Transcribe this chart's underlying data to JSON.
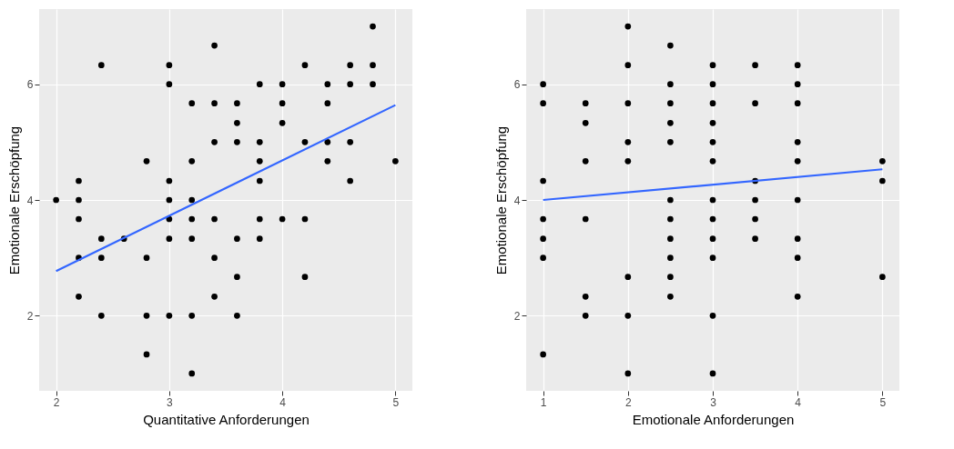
{
  "chart_data": [
    {
      "type": "scatter",
      "xlabel": "Quantitative Anforderungen",
      "ylabel": "Emotionale Erschöpfung",
      "xlim": [
        1.85,
        5.15
      ],
      "ylim": [
        0.7,
        7.3
      ],
      "xticks": [
        2,
        3,
        4,
        5
      ],
      "yticks": [
        2,
        4,
        6
      ],
      "grid": true,
      "series": [
        {
          "marker": "circle",
          "color": "#000000",
          "x": [
            2,
            2.2,
            2.2,
            2.2,
            2.2,
            2.2,
            2.4,
            2.4,
            2.4,
            2.4,
            2.6,
            2.8,
            2.8,
            2.8,
            2.8,
            3,
            3,
            3,
            3,
            3,
            3,
            3,
            3.2,
            3.2,
            3.2,
            3.2,
            3.2,
            3.2,
            3.2,
            3.4,
            3.4,
            3.4,
            3.4,
            3.4,
            3.4,
            3.6,
            3.6,
            3.6,
            3.6,
            3.6,
            3.6,
            3.8,
            3.8,
            3.8,
            3.8,
            3.8,
            3.8,
            4,
            4,
            4,
            4,
            4.2,
            4.2,
            4.2,
            4.2,
            4.4,
            4.4,
            4.4,
            4.4,
            4.6,
            4.6,
            4.6,
            4.6,
            4.8,
            4.8,
            4.8,
            5
          ],
          "values": [
            4,
            4.33,
            4,
            3.67,
            3,
            2.33,
            6.33,
            3.33,
            3,
            2,
            3.33,
            4.67,
            3,
            2,
            1.33,
            6.33,
            6,
            4.33,
            4,
            3.67,
            3.33,
            2,
            5.67,
            4.67,
            4,
            3.67,
            3.33,
            2,
            1,
            6.67,
            5.67,
            5,
            3.67,
            3,
            2.33,
            5.67,
            5.33,
            5,
            3.33,
            2.67,
            2,
            6,
            5,
            4.67,
            4.33,
            3.67,
            3.33,
            6,
            5.67,
            5.33,
            3.67,
            6.33,
            5,
            3.67,
            2.67,
            6,
            5.67,
            5,
            4.67,
            6.33,
            6,
            5,
            4.33,
            7,
            6.33,
            6,
            4.67
          ]
        },
        {
          "type": "line",
          "color": "#3366ff",
          "x": [
            2,
            5
          ],
          "values": [
            2.77,
            5.64
          ]
        }
      ]
    },
    {
      "type": "scatter",
      "xlabel": "Emotionale Anforderungen",
      "ylabel": "Emotionale Erschöpfung",
      "xlim": [
        0.8,
        5.2
      ],
      "ylim": [
        0.7,
        7.3
      ],
      "xticks": [
        1,
        2,
        3,
        4,
        5
      ],
      "yticks": [
        2,
        4,
        6
      ],
      "grid": true,
      "series": [
        {
          "marker": "circle",
          "color": "#000000",
          "x": [
            1,
            1,
            1,
            1,
            1,
            1,
            1,
            1.5,
            1.5,
            1.5,
            1.5,
            1.5,
            1.5,
            2,
            2,
            2,
            2,
            2,
            2,
            2,
            2,
            2.5,
            2.5,
            2.5,
            2.5,
            2.5,
            2.5,
            2.5,
            2.5,
            2.5,
            2.5,
            2.5,
            3,
            3,
            3,
            3,
            3,
            3,
            3,
            3,
            3,
            3,
            3,
            3,
            3.5,
            3.5,
            3.5,
            3.5,
            3.5,
            3.5,
            4,
            4,
            4,
            4,
            4,
            4,
            4,
            4,
            4,
            5,
            5,
            5
          ],
          "values": [
            6,
            5.67,
            4.33,
            3.67,
            3.33,
            3,
            1.33,
            5.67,
            5.33,
            4.67,
            3.67,
            2.33,
            2,
            7,
            6.33,
            5.67,
            5,
            4.67,
            2.67,
            2,
            1,
            6.67,
            6,
            5.67,
            5.33,
            5,
            4,
            3.67,
            3.33,
            3,
            2.67,
            2.33,
            6.33,
            6,
            5.67,
            5.33,
            5,
            4.67,
            4,
            3.67,
            3.33,
            3,
            2,
            1,
            6.33,
            5.67,
            4.33,
            4,
            3.67,
            3.33,
            6.33,
            6,
            5.67,
            5,
            4.67,
            4,
            3.33,
            3,
            2.33,
            4.67,
            4.33,
            2.67
          ]
        },
        {
          "type": "line",
          "color": "#3366ff",
          "x": [
            1,
            5
          ],
          "values": [
            4.0,
            4.53
          ]
        }
      ]
    }
  ]
}
